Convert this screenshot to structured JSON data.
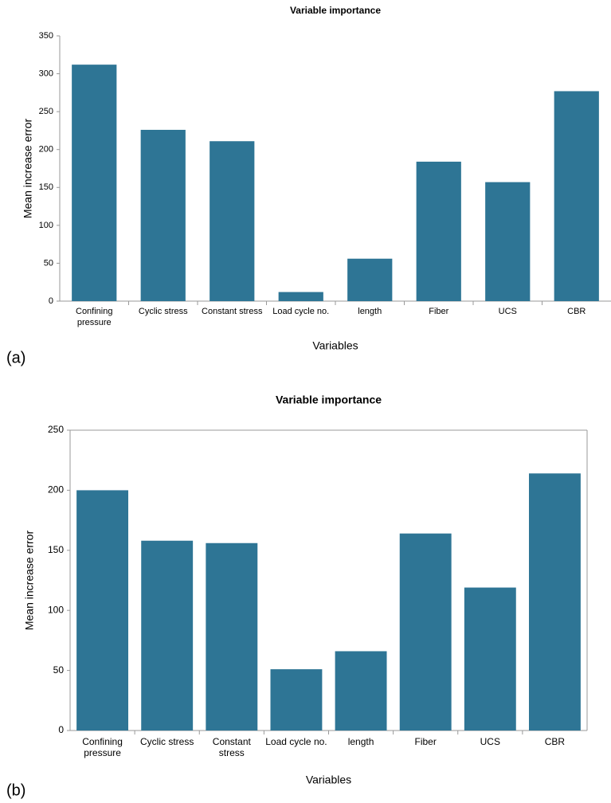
{
  "chart_data": [
    {
      "type": "bar",
      "panel_label": "(a)",
      "title": "Variable importance",
      "x_label": "Variables",
      "y_label": "Mean increase error",
      "categories": [
        "Confining pressure",
        "Cyclic stress",
        "Constant stress",
        "Load cycle no.",
        "length",
        "Fiber",
        "UCS",
        "CBR"
      ],
      "values": [
        312,
        226,
        211,
        12,
        56,
        184,
        157,
        277
      ],
      "color": "#2e7595",
      "ylim": [
        0,
        350
      ],
      "yticks": [
        0,
        50,
        100,
        150,
        200,
        250,
        300,
        350
      ],
      "frame": false
    },
    {
      "type": "bar",
      "panel_label": "(b)",
      "title": "Variable importance",
      "x_label": "Variables",
      "y_label": "Mean increase error",
      "categories": [
        "Confining pressure",
        "Cyclic stress",
        "Constant stress",
        "Load cycle no.",
        "length",
        "Fiber",
        "UCS",
        "CBR"
      ],
      "values": [
        200,
        158,
        156,
        51,
        66,
        164,
        119,
        214
      ],
      "color": "#2e7595",
      "ylim": [
        0,
        250
      ],
      "yticks": [
        0,
        50,
        100,
        150,
        200,
        250
      ],
      "frame": true
    }
  ]
}
